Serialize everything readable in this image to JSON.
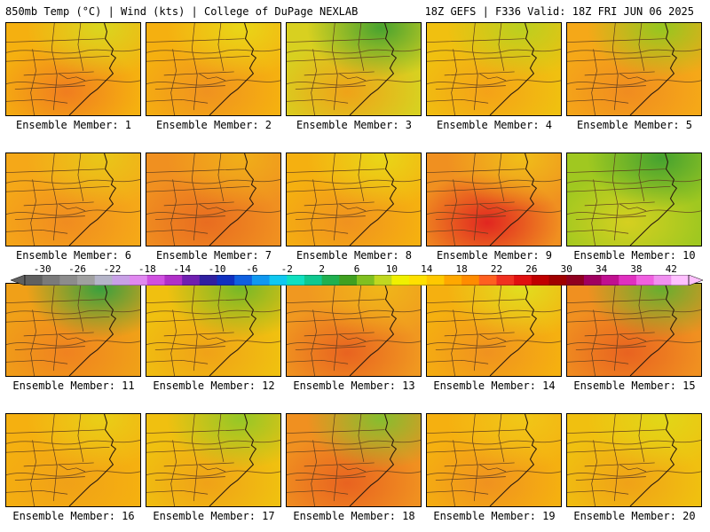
{
  "header": {
    "left": "850mb Temp (°C) | Wind (kts) | College of DuPage NEXLAB",
    "right": "18Z GEFS | F336 Valid: 18Z FRI JUN 06 2025"
  },
  "colorbar": {
    "tick_labels": [
      "-30",
      "-26",
      "-22",
      "-18",
      "-14",
      "-10",
      "-6",
      "-2",
      "2",
      "6",
      "10",
      "14",
      "18",
      "22",
      "26",
      "30",
      "34",
      "38",
      "42"
    ],
    "colors": [
      "#606060",
      "#7a7a7a",
      "#8c8c8c",
      "#a0a0a0",
      "#b4b4c8",
      "#c8a0e6",
      "#e088f0",
      "#d050e0",
      "#b030c8",
      "#7020b0",
      "#3020a0",
      "#1030c0",
      "#1060e0",
      "#1098f0",
      "#10c8f0",
      "#10e0c0",
      "#10c890",
      "#20b050",
      "#40a020",
      "#80c020",
      "#c0d820",
      "#f0f000",
      "#ffe000",
      "#ffc800",
      "#ffa800",
      "#ff8c00",
      "#ff6020",
      "#f03020",
      "#e01010",
      "#c00000",
      "#a00000",
      "#900020",
      "#a00060",
      "#c01090",
      "#e030c0",
      "#f060e0",
      "#f090f0",
      "#ffc0ff"
    ]
  },
  "members": [
    {
      "label": "Ensemble Member: 1",
      "base": "#f5b010",
      "hot": "#f07a20",
      "cool": "#d8d820"
    },
    {
      "label": "Ensemble Member: 2",
      "base": "#f5b010",
      "hot": "#f09020",
      "cool": "#e8d818"
    },
    {
      "label": "Ensemble Member: 3",
      "base": "#d8d020",
      "hot": "#f0a018",
      "cool": "#40a030"
    },
    {
      "label": "Ensemble Member: 4",
      "base": "#f0c010",
      "hot": "#f5a018",
      "cool": "#b8d020"
    },
    {
      "label": "Ensemble Member: 5",
      "base": "#f5a818",
      "hot": "#f08a20",
      "cool": "#90c820"
    },
    {
      "label": "Ensemble Member: 6",
      "base": "#f5a818",
      "hot": "#f08a20",
      "cool": "#e8c818"
    },
    {
      "label": "Ensemble Member: 7",
      "base": "#f09020",
      "hot": "#e86a20",
      "cool": "#f0b018"
    },
    {
      "label": "Ensemble Member: 8",
      "base": "#f5b010",
      "hot": "#f09020",
      "cool": "#e8d818"
    },
    {
      "label": "Ensemble Member: 9",
      "base": "#f09020",
      "hot": "#e02020",
      "cool": "#f0c018"
    },
    {
      "label": "Ensemble Member: 10",
      "base": "#a0c820",
      "hot": "#d8d020",
      "cool": "#40a030"
    },
    {
      "label": "Ensemble Member: 11",
      "base": "#f0a018",
      "hot": "#f08020",
      "cool": "#30a040"
    },
    {
      "label": "Ensemble Member: 12",
      "base": "#f0c010",
      "hot": "#f0a018",
      "cool": "#70b828"
    },
    {
      "label": "Ensemble Member: 13",
      "base": "#f09820",
      "hot": "#e86020",
      "cool": "#f0b818"
    },
    {
      "label": "Ensemble Member: 14",
      "base": "#f5b010",
      "hot": "#f09020",
      "cool": "#e0e020"
    },
    {
      "label": "Ensemble Member: 15",
      "base": "#f09020",
      "hot": "#e86020",
      "cool": "#60b030"
    },
    {
      "label": "Ensemble Member: 16",
      "base": "#f5b010",
      "hot": "#f0a018",
      "cool": "#e8d018"
    },
    {
      "label": "Ensemble Member: 17",
      "base": "#f0c010",
      "hot": "#f0a018",
      "cool": "#90c828"
    },
    {
      "label": "Ensemble Member: 18",
      "base": "#f09020",
      "hot": "#e86020",
      "cool": "#80c030"
    },
    {
      "label": "Ensemble Member: 19",
      "base": "#f5b010",
      "hot": "#f09020",
      "cool": "#f0c818"
    },
    {
      "label": "Ensemble Member: 20",
      "base": "#f0c010",
      "hot": "#f0a018",
      "cool": "#e0d818"
    }
  ]
}
